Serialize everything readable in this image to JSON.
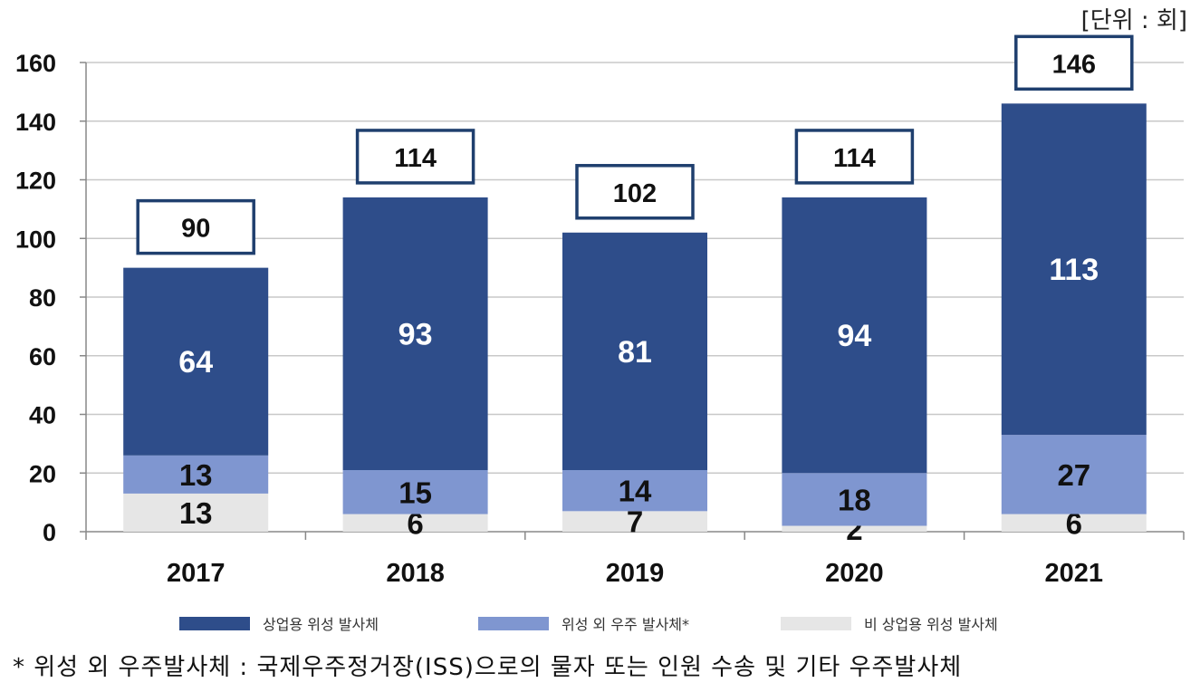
{
  "unit_label": "[단위 : 회]",
  "footnote": "*  위성 외 우주발사체 : 국제우주정거장(ISS)으로의 물자 또는 인원 수송 및 기타 우주발사체",
  "colors": {
    "commercial": "#2e4d8a",
    "non_satellite": "#7f96d0",
    "non_commercial": "#e6e6e6",
    "total_box_border": "#1f3f6e",
    "grid": "#c8c8c8"
  },
  "chart_data": {
    "type": "bar",
    "stacked": true,
    "categories": [
      "2017",
      "2018",
      "2019",
      "2020",
      "2021"
    ],
    "series": [
      {
        "name": "비 상업용 위성 발사체",
        "color": "#e6e6e6",
        "values": [
          13,
          6,
          7,
          2,
          6
        ]
      },
      {
        "name": "위성 외 우주 발사체*",
        "color": "#7f96d0",
        "values": [
          13,
          15,
          14,
          18,
          27
        ]
      },
      {
        "name": "상업용 위성 발사체",
        "color": "#2e4d8a",
        "values": [
          64,
          93,
          81,
          94,
          113
        ]
      }
    ],
    "totals": [
      90,
      114,
      102,
      114,
      146
    ],
    "ylim": [
      0,
      160
    ],
    "yticks": [
      "0",
      "20",
      "40",
      "60",
      "80",
      "100",
      "120",
      "140",
      "160"
    ],
    "grid": true,
    "legend": "bottom",
    "legend_order": [
      "상업용 위성 발사체",
      "위성 외 우주 발사체*",
      "비 상업용 위성 발사체"
    ]
  }
}
